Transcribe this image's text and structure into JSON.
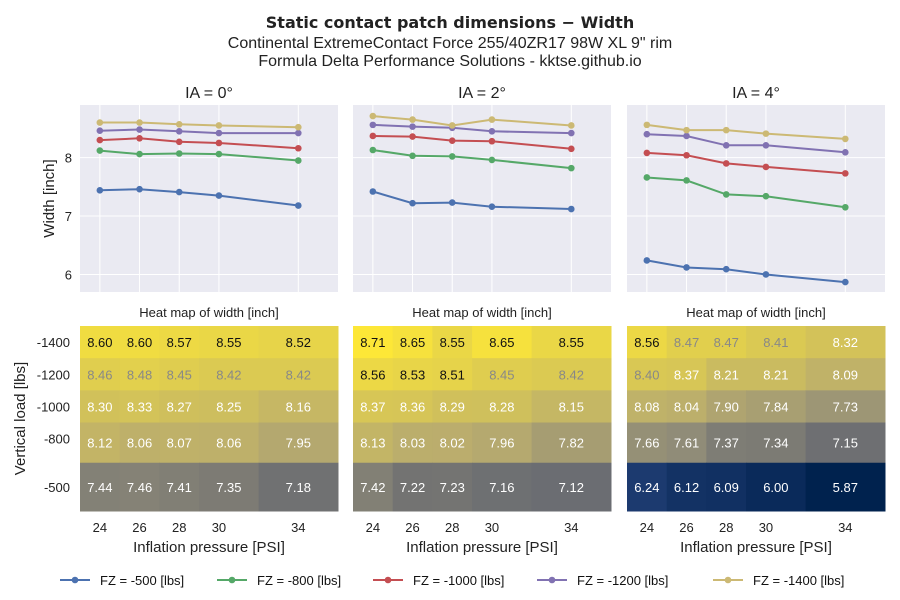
{
  "title": "Static contact patch dimensions  −  Width",
  "subtitle_lines": [
    "Continental ExtremeContact Force 255/40ZR17 98W XL 9\" rim",
    "Formula Delta Performance Solutions - kktse.github.io"
  ],
  "legend": {
    "placement": "bottom",
    "items": [
      "FZ = -500 [lbs]",
      "FZ = -800 [lbs]",
      "FZ = -1000 [lbs]",
      "FZ = -1200 [lbs]",
      "FZ = -1400 [lbs]"
    ]
  },
  "colors": {
    "series": [
      "#4c72b0",
      "#55a868",
      "#c44e52",
      "#8172b2",
      "#ccb974"
    ],
    "panel_background": "#eaeaf2",
    "grid": "#ffffff"
  },
  "chart_data": [
    {
      "type": "line",
      "title": "IA = 0°",
      "xlabel": "",
      "ylabel": "Width [inch]",
      "x": [
        24,
        26,
        28,
        30,
        34
      ],
      "xlim": [
        23,
        36
      ],
      "ylim": [
        5.7,
        8.9
      ],
      "yticks": [
        6,
        7,
        8
      ],
      "grid": true,
      "series": [
        {
          "name": "FZ = -500 [lbs]",
          "values": [
            7.44,
            7.46,
            7.41,
            7.35,
            7.18
          ]
        },
        {
          "name": "FZ = -800 [lbs]",
          "values": [
            8.12,
            8.06,
            8.07,
            8.06,
            7.95
          ]
        },
        {
          "name": "FZ = -1000 [lbs]",
          "values": [
            8.3,
            8.33,
            8.27,
            8.25,
            8.16
          ]
        },
        {
          "name": "FZ = -1200 [lbs]",
          "values": [
            8.46,
            8.48,
            8.45,
            8.42,
            8.42
          ]
        },
        {
          "name": "FZ = -1400 [lbs]",
          "values": [
            8.6,
            8.6,
            8.57,
            8.55,
            8.52
          ]
        }
      ]
    },
    {
      "type": "line",
      "title": "IA = 2°",
      "xlabel": "",
      "ylabel": "",
      "x": [
        24,
        26,
        28,
        30,
        34
      ],
      "xlim": [
        23,
        36
      ],
      "ylim": [
        5.7,
        8.9
      ],
      "yticks": [
        6,
        7,
        8
      ],
      "grid": true,
      "series": [
        {
          "name": "FZ = -500 [lbs]",
          "values": [
            7.42,
            7.22,
            7.23,
            7.16,
            7.12
          ]
        },
        {
          "name": "FZ = -800 [lbs]",
          "values": [
            8.13,
            8.03,
            8.02,
            7.96,
            7.82
          ]
        },
        {
          "name": "FZ = -1000 [lbs]",
          "values": [
            8.37,
            8.36,
            8.29,
            8.28,
            8.15
          ]
        },
        {
          "name": "FZ = -1200 [lbs]",
          "values": [
            8.56,
            8.53,
            8.51,
            8.45,
            8.42
          ]
        },
        {
          "name": "FZ = -1400 [lbs]",
          "values": [
            8.71,
            8.65,
            8.55,
            8.65,
            8.55
          ]
        }
      ]
    },
    {
      "type": "line",
      "title": "IA = 4°",
      "xlabel": "",
      "ylabel": "",
      "x": [
        24,
        26,
        28,
        30,
        34
      ],
      "xlim": [
        23,
        36
      ],
      "ylim": [
        5.7,
        8.9
      ],
      "yticks": [
        6,
        7,
        8
      ],
      "grid": true,
      "series": [
        {
          "name": "FZ = -500 [lbs]",
          "values": [
            6.24,
            6.12,
            6.09,
            6.0,
            5.87
          ]
        },
        {
          "name": "FZ = -800 [lbs]",
          "values": [
            7.66,
            7.61,
            7.37,
            7.34,
            7.15
          ]
        },
        {
          "name": "FZ = -1000 [lbs]",
          "values": [
            8.08,
            8.04,
            7.9,
            7.84,
            7.73
          ]
        },
        {
          "name": "FZ = -1200 [lbs]",
          "values": [
            8.4,
            8.37,
            8.21,
            8.21,
            8.09
          ]
        },
        {
          "name": "FZ = -1400 [lbs]",
          "values": [
            8.56,
            8.47,
            8.47,
            8.41,
            8.32
          ]
        }
      ]
    },
    {
      "type": "heatmap",
      "title": "Heat map of width [inch]",
      "panel": "IA = 0°",
      "xlabel": "Inflation pressure [PSI]",
      "ylabel": "Vertical load [lbs]",
      "x": [
        24,
        26,
        28,
        30,
        34
      ],
      "y": [
        -1400,
        -1200,
        -1000,
        -800,
        -500
      ],
      "values": [
        [
          8.6,
          8.6,
          8.57,
          8.55,
          8.52
        ],
        [
          8.46,
          8.48,
          8.45,
          8.42,
          8.42
        ],
        [
          8.3,
          8.33,
          8.27,
          8.25,
          8.16
        ],
        [
          8.12,
          8.06,
          8.07,
          8.06,
          7.95
        ],
        [
          7.44,
          7.46,
          7.41,
          7.35,
          7.18
        ]
      ]
    },
    {
      "type": "heatmap",
      "title": "Heat map of width [inch]",
      "panel": "IA = 2°",
      "xlabel": "Inflation pressure [PSI]",
      "ylabel": "",
      "x": [
        24,
        26,
        28,
        30,
        34
      ],
      "y": [
        -1400,
        -1200,
        -1000,
        -800,
        -500
      ],
      "values": [
        [
          8.71,
          8.65,
          8.55,
          8.65,
          8.55
        ],
        [
          8.56,
          8.53,
          8.51,
          8.45,
          8.42
        ],
        [
          8.37,
          8.36,
          8.29,
          8.28,
          8.15
        ],
        [
          8.13,
          8.03,
          8.02,
          7.96,
          7.82
        ],
        [
          7.42,
          7.22,
          7.23,
          7.16,
          7.12
        ]
      ]
    },
    {
      "type": "heatmap",
      "title": "Heat map of width [inch]",
      "panel": "IA = 4°",
      "xlabel": "Inflation pressure [PSI]",
      "ylabel": "",
      "x": [
        24,
        26,
        28,
        30,
        34
      ],
      "y": [
        -1400,
        -1200,
        -1000,
        -800,
        -500
      ],
      "values": [
        [
          8.56,
          8.47,
          8.47,
          8.41,
          8.32
        ],
        [
          8.4,
          8.37,
          8.21,
          8.21,
          8.09
        ],
        [
          8.08,
          8.04,
          7.9,
          7.84,
          7.73
        ],
        [
          7.66,
          7.61,
          7.37,
          7.34,
          7.15
        ],
        [
          6.24,
          6.12,
          6.09,
          6.0,
          5.87
        ]
      ]
    }
  ]
}
